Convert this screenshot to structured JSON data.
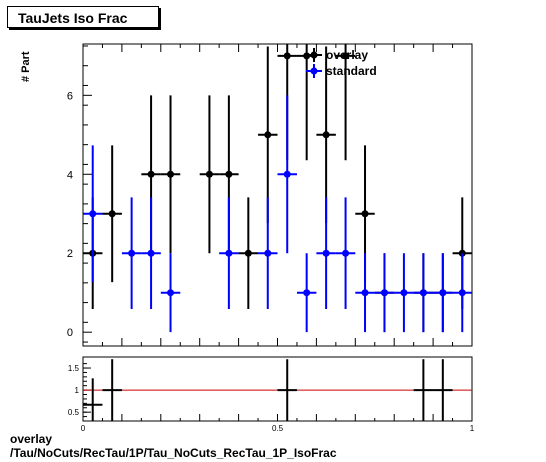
{
  "title": "TauJets Iso Frac",
  "footer_line1": "overlay",
  "footer_line2": "/Tau/NoCuts/RecTau/1P/Tau_NoCuts_RecTau_1P_IsoFrac",
  "chart_data": [
    {
      "type": "scatter",
      "ylabel": "# Part",
      "xlim": [
        0,
        1
      ],
      "ylim": [
        -0.35,
        7.3
      ],
      "yticks": [
        0,
        2,
        4,
        6
      ],
      "legend": "top-right",
      "colors": {
        "overlay": "#000000",
        "standard": "#0000ff"
      },
      "series": [
        {
          "name": "overlay",
          "x": [
            0.025,
            0.075,
            0.175,
            0.225,
            0.325,
            0.375,
            0.425,
            0.475,
            0.525,
            0.575,
            0.625,
            0.675,
            0.725,
            0.775,
            0.875,
            0.925,
            0.975
          ],
          "values": [
            2,
            3,
            4,
            4,
            4,
            4,
            2,
            5,
            7,
            7,
            5,
            7,
            3,
            1,
            1,
            1,
            2
          ]
        },
        {
          "name": "standard",
          "x": [
            0.025,
            0.125,
            0.175,
            0.225,
            0.375,
            0.475,
            0.525,
            0.575,
            0.625,
            0.675,
            0.725,
            0.775,
            0.825,
            0.875,
            0.925,
            0.975
          ],
          "values": [
            3,
            2,
            2,
            1,
            2,
            2,
            4,
            1,
            2,
            2,
            1,
            1,
            1,
            1,
            1,
            1
          ]
        }
      ]
    },
    {
      "type": "scatter",
      "xlim": [
        0,
        1
      ],
      "ylim": [
        0.3,
        1.75
      ],
      "yticks": [
        0.5,
        1,
        1.5
      ],
      "xticks": [
        0,
        0.5,
        1
      ],
      "ratio_line": 1,
      "ratio_color": "#cc0000",
      "points": {
        "x": [
          0.025,
          0.075,
          0.525,
          0.875,
          0.925
        ],
        "values": [
          0.667,
          1.0,
          1.0,
          1.0,
          1.0
        ]
      }
    }
  ]
}
